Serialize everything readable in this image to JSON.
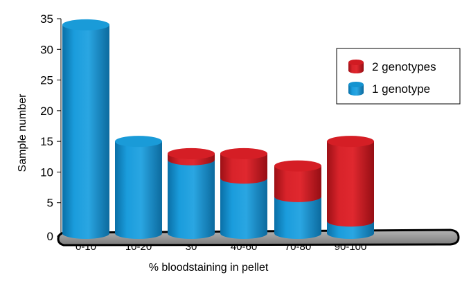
{
  "chart_data": {
    "type": "bar",
    "stacked": true,
    "style": "3d-cylinder",
    "title": "",
    "xlabel": "% bloodstaining in pellet",
    "ylabel": "Sample number",
    "ylim": [
      0,
      35
    ],
    "yticks": [
      0,
      5,
      10,
      15,
      20,
      25,
      30,
      35
    ],
    "grid": false,
    "legend_position": "top-right",
    "categories": [
      "0-10",
      "10-20",
      "30",
      "40-60",
      "70-80",
      "90-100"
    ],
    "series": [
      {
        "name": "1 genotype",
        "color": "#1493d0",
        "values": [
          34,
          15,
          12,
          9,
          6,
          2
        ]
      },
      {
        "name": "2 genotypes",
        "color": "#d11b22",
        "values": [
          0,
          0,
          1,
          4,
          5,
          13
        ]
      }
    ],
    "legend": [
      {
        "label": "2 genotypes",
        "color": "#d11b22"
      },
      {
        "label": "1 genotype",
        "color": "#1493d0"
      }
    ],
    "floor_color": "#9c9c9c"
  }
}
